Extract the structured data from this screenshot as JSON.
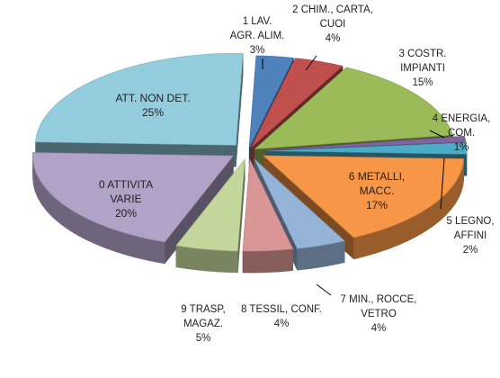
{
  "chart_data": {
    "type": "pie",
    "title": "",
    "style": "3d-exploded",
    "slices": [
      {
        "name": "1 LAV. AGR. ALIM.",
        "label_lines": [
          "1 LAV.",
          "AGR. ALIM.",
          "3%"
        ],
        "value": 3,
        "color": "#4f81bd"
      },
      {
        "name": "2 CHIM., CARTA, CUOI",
        "label_lines": [
          "2 CHIM., CARTA,",
          "CUOI",
          "4%"
        ],
        "value": 4,
        "color": "#c0504d"
      },
      {
        "name": "3 COSTR. IMPIANTI",
        "label_lines": [
          "3 COSTR.",
          "IMPIANTI",
          "15%"
        ],
        "value": 15,
        "color": "#9bbb59"
      },
      {
        "name": "4 ENERGIA, COM.",
        "label_lines": [
          "4 ENERGIA,",
          "COM.",
          "1%"
        ],
        "value": 1,
        "color": "#8064a2"
      },
      {
        "name": "5 LEGNO, AFFINI",
        "label_lines": [
          "5 LEGNO,",
          "AFFINI",
          "2%"
        ],
        "value": 2,
        "color": "#4bacc6"
      },
      {
        "name": "6 METALLI, MACC.",
        "label_lines": [
          "6 METALLI,",
          "MACC.",
          "17%"
        ],
        "value": 17,
        "color": "#f79646"
      },
      {
        "name": "7 MIN., ROCCE, VETRO",
        "label_lines": [
          "7 MIN., ROCCE,",
          "VETRO",
          "4%"
        ],
        "value": 4,
        "color": "#95b3d7"
      },
      {
        "name": "8 TESSIL, CONF.",
        "label_lines": [
          "8 TESSIL, CONF.",
          "4%"
        ],
        "value": 4,
        "color": "#d99694"
      },
      {
        "name": "9 TRASP, MAGAZ.",
        "label_lines": [
          "9 TRASP,",
          "MAGAZ.",
          "5%"
        ],
        "value": 5,
        "color": "#c3d69b"
      },
      {
        "name": "0 ATTIVITA VARIE",
        "label_lines": [
          "0 ATTIVITA",
          "VARIE",
          "20%"
        ],
        "value": 20,
        "color": "#b2a2c7"
      },
      {
        "name": "ATT. NON DET.",
        "label_lines": [
          "ATT. NON DET.",
          "25%"
        ],
        "value": 25,
        "color": "#93cddd"
      }
    ]
  }
}
